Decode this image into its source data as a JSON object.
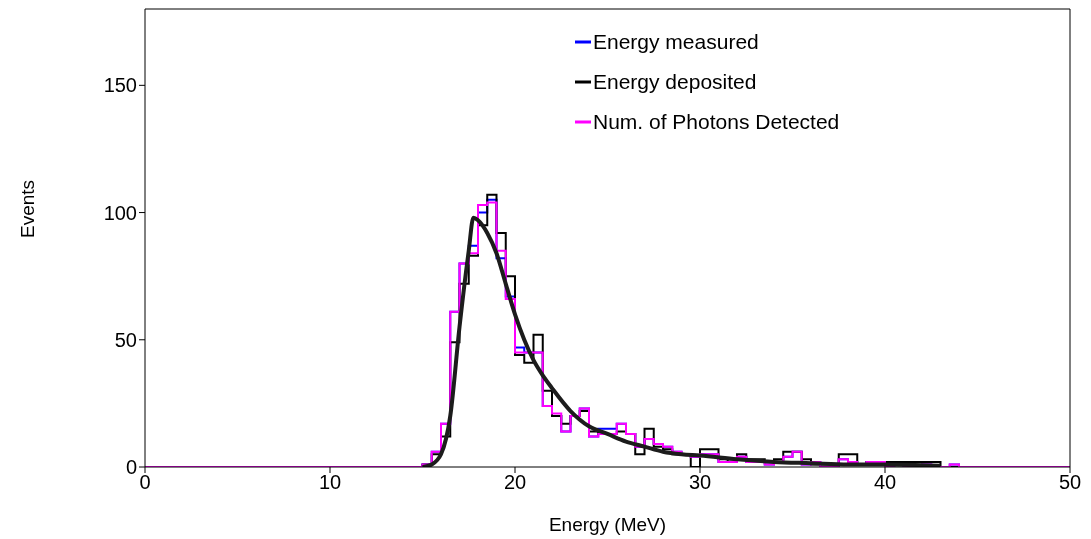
{
  "chart_data": {
    "type": "histogram",
    "xlabel": "Energy (MeV)",
    "ylabel": "Events",
    "xlim": [
      0,
      50
    ],
    "ylim": [
      0,
      180
    ],
    "xticks": [
      0,
      10,
      20,
      30,
      40,
      50
    ],
    "yticks": [
      0,
      50,
      100,
      150
    ],
    "legend": "top right",
    "bins": [
      0,
      0.5,
      1,
      1.5,
      2,
      2.5,
      3,
      3.5,
      4,
      4.5,
      5,
      5.5,
      6,
      6.5,
      7,
      7.5,
      8,
      8.5,
      9,
      9.5,
      10,
      10.5,
      11,
      11.5,
      12,
      12.5,
      13,
      13.5,
      14,
      14.5,
      15,
      15.5,
      16,
      16.5,
      17,
      17.5,
      18,
      18.5,
      19,
      19.5,
      20,
      20.5,
      21,
      21.5,
      22,
      22.5,
      23,
      23.5,
      24,
      24.5,
      25,
      25.5,
      26,
      26.5,
      27,
      27.5,
      28,
      28.5,
      29,
      29.5,
      30,
      30.5,
      31,
      31.5,
      32,
      32.5,
      33,
      33.5,
      34,
      34.5,
      35,
      35.5,
      36,
      36.5,
      37,
      37.5,
      38,
      38.5,
      39,
      39.5,
      40,
      40.5,
      41,
      41.5,
      42,
      42.5,
      43,
      43.5,
      44,
      44.5,
      45,
      45.5,
      46,
      46.5,
      47,
      47.5,
      48,
      48.5,
      49,
      49.5,
      50
    ],
    "series": [
      {
        "name": "Energy measured",
        "color": "#0000ff",
        "values": [
          0,
          0,
          0,
          0,
          0,
          0,
          0,
          0,
          0,
          0,
          0,
          0,
          0,
          0,
          0,
          0,
          0,
          0,
          0,
          0,
          0,
          0,
          0,
          0,
          0,
          0,
          0,
          0,
          0,
          0,
          1,
          6,
          17,
          61,
          80,
          87,
          100,
          105,
          82,
          67,
          47,
          45,
          45,
          24,
          20,
          14,
          20,
          23,
          12,
          15,
          15,
          17,
          13,
          8,
          11,
          9,
          8,
          6,
          5,
          4,
          5,
          5,
          2,
          2,
          4,
          2,
          2,
          1,
          2,
          4,
          6,
          1,
          2,
          0,
          0,
          3,
          2,
          1,
          2,
          2,
          0,
          1,
          0,
          0,
          1,
          0,
          0,
          1,
          0,
          0,
          0,
          0,
          0,
          0,
          0,
          0,
          0,
          0,
          0,
          0
        ]
      },
      {
        "name": "Energy deposited",
        "color": "#000000",
        "values": [
          0,
          0,
          0,
          0,
          0,
          0,
          0,
          0,
          0,
          0,
          0,
          0,
          0,
          0,
          0,
          0,
          0,
          0,
          0,
          0,
          0,
          0,
          0,
          0,
          0,
          0,
          0,
          0,
          0,
          0,
          1,
          5,
          12,
          49,
          72,
          83,
          95,
          107,
          92,
          75,
          44,
          41,
          52,
          30,
          20,
          17,
          20,
          22,
          14,
          13,
          13,
          14,
          13,
          5,
          15,
          8,
          7,
          5,
          5,
          0,
          7,
          7,
          3,
          2,
          5,
          3,
          3,
          2,
          3,
          6,
          6,
          3,
          1,
          1,
          1,
          5,
          5,
          1,
          2,
          2,
          2,
          2,
          2,
          2,
          2,
          2,
          0,
          0,
          0,
          0,
          0,
          0,
          0,
          0,
          0,
          0,
          0,
          0,
          0,
          0
        ]
      },
      {
        "name": "Num. of Photons Detected",
        "color": "#ff00ff",
        "values": [
          0,
          0,
          0,
          0,
          0,
          0,
          0,
          0,
          0,
          0,
          0,
          0,
          0,
          0,
          0,
          0,
          0,
          0,
          0,
          0,
          0,
          0,
          0,
          0,
          0,
          0,
          0,
          0,
          0,
          0,
          1,
          6,
          17,
          61,
          80,
          84,
          103,
          104,
          85,
          66,
          45,
          45,
          45,
          24,
          21,
          14,
          20,
          23,
          12,
          13,
          13,
          17,
          13,
          8,
          11,
          9,
          8,
          6,
          5,
          4,
          5,
          5,
          2,
          2,
          4,
          2,
          2,
          1,
          2,
          4,
          6,
          1,
          2,
          0,
          0,
          3,
          2,
          1,
          2,
          2,
          0,
          1,
          0,
          0,
          1,
          0,
          0,
          1,
          0,
          0,
          0,
          0,
          0,
          0,
          0,
          0,
          0,
          0,
          0,
          0
        ]
      },
      {
        "type": "line",
        "color": "#1c1c1c",
        "x": [
          15,
          15.5,
          16,
          16.5,
          17,
          17.5,
          17.75,
          18,
          18.5,
          19,
          19.5,
          20,
          20.5,
          21,
          21.5,
          22,
          23,
          24,
          25,
          26,
          27,
          28,
          29,
          30,
          32,
          34,
          36,
          38,
          40,
          43
        ],
        "values": [
          0,
          1,
          5,
          20,
          55,
          85,
          98,
          97,
          92,
          84,
          72,
          60,
          50,
          42,
          36,
          31,
          22,
          16,
          13,
          10,
          8,
          6,
          5,
          4.5,
          3,
          2,
          1.5,
          1,
          1,
          0.5
        ]
      }
    ]
  }
}
